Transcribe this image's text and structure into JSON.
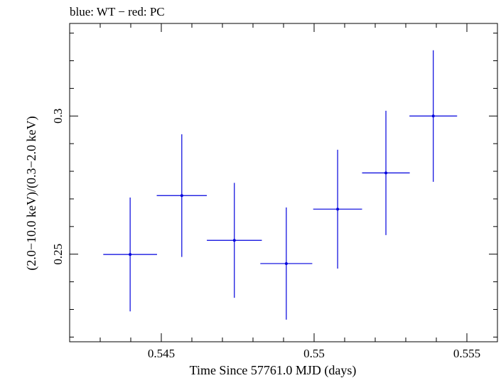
{
  "chart_data": {
    "type": "scatter",
    "title": "blue: WT − red: PC",
    "xlabel": "Time Since 57761.0 MJD (days)",
    "ylabel": "(2.0−10.0 keV)/(0.3−2.0 keV)",
    "xlim": [
      0.542,
      0.556
    ],
    "ylim": [
      0.2183,
      0.3335
    ],
    "xticks": [
      {
        "value": 0.545,
        "label": "0.545"
      },
      {
        "value": 0.55,
        "label": "0.55"
      },
      {
        "value": 0.555,
        "label": "0.555"
      }
    ],
    "yticks": [
      {
        "value": 0.25,
        "label": "0.25"
      },
      {
        "value": 0.3,
        "label": "0.3"
      }
    ],
    "grid": false,
    "colors": {
      "series": "#0000dd",
      "axes": "#000000"
    },
    "series": [
      {
        "color": "#0000dd",
        "points": [
          {
            "x": 0.54398,
            "xerr": 0.00088,
            "y": 0.2499,
            "yerr": 0.0206
          },
          {
            "x": 0.54567,
            "xerr": 0.00082,
            "y": 0.2712,
            "yerr": 0.0222
          },
          {
            "x": 0.54739,
            "xerr": 0.0009,
            "y": 0.255,
            "yerr": 0.0208
          },
          {
            "x": 0.54909,
            "xerr": 0.00085,
            "y": 0.2466,
            "yerr": 0.0203
          },
          {
            "x": 0.55077,
            "xerr": 0.0008,
            "y": 0.2663,
            "yerr": 0.0215
          },
          {
            "x": 0.55235,
            "xerr": 0.00078,
            "y": 0.2794,
            "yerr": 0.0225
          },
          {
            "x": 0.5539,
            "xerr": 0.00078,
            "y": 0.3,
            "yerr": 0.0238
          }
        ]
      }
    ]
  }
}
